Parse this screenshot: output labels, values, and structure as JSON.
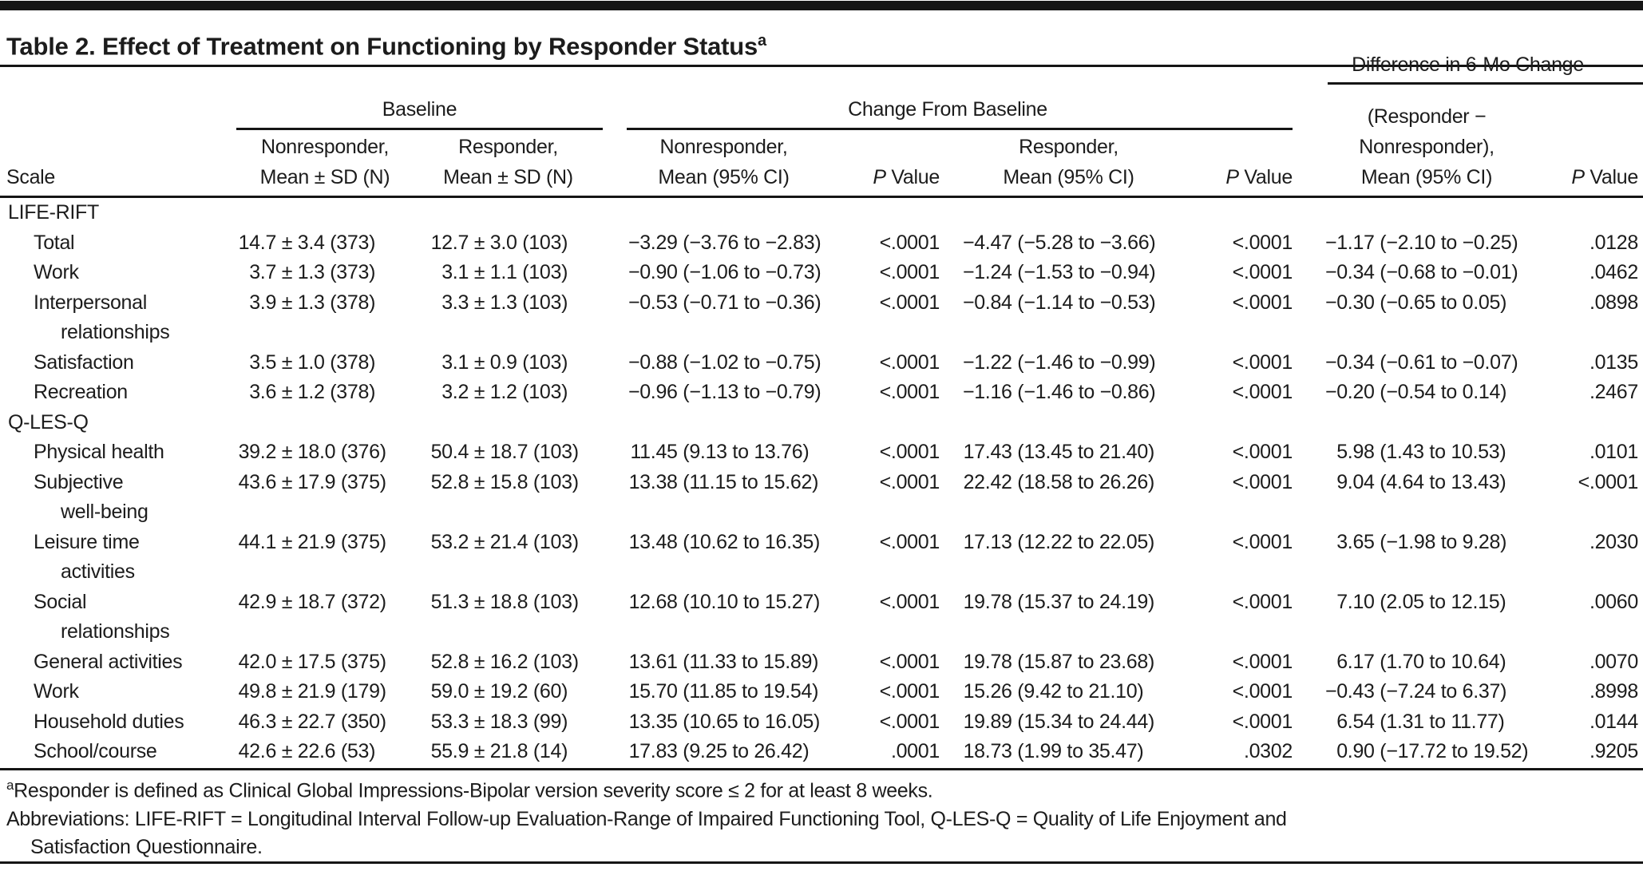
{
  "title": "Table 2. Effect of Treatment on Functioning by Responder Status",
  "title_superscript": "a",
  "table": {
    "header": {
      "scale_label": "Scale",
      "group_baseline": "Baseline",
      "group_change": "Change From Baseline",
      "group_difference": "Difference in 6-Mo Change",
      "col_baseline_nonresponder": [
        "Nonresponder,",
        "Mean ± SD (N)"
      ],
      "col_baseline_responder": [
        "Responder,",
        "Mean ± SD (N)"
      ],
      "col_change_nonresponder": [
        "Nonresponder,",
        "Mean (95% CI)"
      ],
      "col_change_responder": [
        "Responder,",
        "Mean (95% CI)"
      ],
      "col_difference": [
        "(Responder −",
        "Nonresponder),",
        "Mean (95% CI)"
      ],
      "p_label_italic": "P",
      "p_label_rest": " Value"
    },
    "rows": [
      {
        "label": "LIFE-RIFT",
        "indent": 0
      },
      {
        "label": "Total",
        "indent": 1,
        "cells": [
          "14.7 ± 3.4 (373)",
          "12.7 ± 3.0 (103)",
          "−3.29 (−3.76 to −2.83)",
          "<.0001",
          "−4.47 (−5.28 to −3.66)",
          "<.0001",
          "−1.17 (−2.10 to −0.25)",
          ".0128"
        ]
      },
      {
        "label": "Work",
        "indent": 1,
        "cells": [
          "3.7 ± 1.3 (373)",
          "3.1 ± 1.1 (103)",
          "−0.90 (−1.06 to −0.73)",
          "<.0001",
          "−1.24 (−1.53 to −0.94)",
          "<.0001",
          "−0.34 (−0.68 to −0.01)",
          ".0462"
        ]
      },
      {
        "label": "Interpersonal",
        "label2": "relationships",
        "indent": 1,
        "cells": [
          "3.9 ± 1.3 (378)",
          "3.3 ± 1.3 (103)",
          "−0.53 (−0.71 to −0.36)",
          "<.0001",
          "−0.84 (−1.14 to −0.53)",
          "<.0001",
          "−0.30 (−0.65 to 0.05)",
          ".0898"
        ]
      },
      {
        "label": "Satisfaction",
        "indent": 1,
        "cells": [
          "3.5 ± 1.0 (378)",
          "3.1 ± 0.9 (103)",
          "−0.88 (−1.02 to −0.75)",
          "<.0001",
          "−1.22 (−1.46 to −0.99)",
          "<.0001",
          "−0.34 (−0.61 to −0.07)",
          ".0135"
        ]
      },
      {
        "label": "Recreation",
        "indent": 1,
        "cells": [
          "3.6 ± 1.2 (378)",
          "3.2 ± 1.2 (103)",
          "−0.96 (−1.13 to −0.79)",
          "<.0001",
          "−1.16 (−1.46 to −0.86)",
          "<.0001",
          "−0.20 (−0.54 to 0.14)",
          ".2467"
        ]
      },
      {
        "label": "Q-LES-Q",
        "indent": 0
      },
      {
        "label": "Physical health",
        "indent": 1,
        "cells": [
          "39.2 ± 18.0 (376)",
          "50.4 ± 18.7 (103)",
          "11.45 (9.13 to 13.76)",
          "<.0001",
          "17.43 (13.45 to 21.40)",
          "<.0001",
          "5.98 (1.43 to 10.53)",
          ".0101"
        ]
      },
      {
        "label": "Subjective",
        "label2": "well-being",
        "indent": 1,
        "cells": [
          "43.6 ± 17.9 (375)",
          "52.8 ± 15.8 (103)",
          "13.38 (11.15 to 15.62)",
          "<.0001",
          "22.42 (18.58 to 26.26)",
          "<.0001",
          "9.04 (4.64 to 13.43)",
          "<.0001"
        ]
      },
      {
        "label": "Leisure time",
        "label2": "activities",
        "indent": 1,
        "cells": [
          "44.1 ± 21.9 (375)",
          "53.2 ± 21.4 (103)",
          "13.48 (10.62 to 16.35)",
          "<.0001",
          "17.13 (12.22 to 22.05)",
          "<.0001",
          "3.65 (−1.98 to 9.28)",
          ".2030"
        ]
      },
      {
        "label": "Social",
        "label2": "relationships",
        "indent": 1,
        "cells": [
          "42.9 ± 18.7 (372)",
          "51.3 ± 18.8 (103)",
          "12.68 (10.10 to 15.27)",
          "<.0001",
          "19.78 (15.37 to 24.19)",
          "<.0001",
          "7.10 (2.05 to 12.15)",
          ".0060"
        ]
      },
      {
        "label": "General activities",
        "indent": 1,
        "cells": [
          "42.0 ± 17.5 (375)",
          "52.8 ± 16.2 (103)",
          "13.61 (11.33 to 15.89)",
          "<.0001",
          "19.78 (15.87 to 23.68)",
          "<.0001",
          "6.17 (1.70 to 10.64)",
          ".0070"
        ]
      },
      {
        "label": "Work",
        "indent": 1,
        "cells": [
          "49.8 ± 21.9 (179)",
          "59.0 ± 19.2 (60)",
          "15.70 (11.85 to 19.54)",
          "<.0001",
          "15.26 (9.42 to 21.10)",
          "<.0001",
          "−0.43 (−7.24 to 6.37)",
          ".8998"
        ]
      },
      {
        "label": "Household duties",
        "indent": 1,
        "cells": [
          "46.3 ± 22.7 (350)",
          "53.3 ± 18.3 (99)",
          "13.35 (10.65 to 16.05)",
          "<.0001",
          "19.89 (15.34 to 24.44)",
          "<.0001",
          "6.54 (1.31 to 11.77)",
          ".0144"
        ]
      },
      {
        "label": "School/course",
        "indent": 1,
        "cells": [
          "42.6 ± 22.6 (53)",
          "55.9 ± 21.8 (14)",
          "17.83 (9.25 to 26.42)",
          ".0001",
          "18.73 (1.99 to 35.47)",
          ".0302",
          "0.90 (−17.72 to 19.52)",
          ".9205"
        ]
      }
    ]
  },
  "footnotes": {
    "marker": "a",
    "responder_definition": "Responder is defined as Clinical Global Impressions-Bipolar version severity score ≤ 2 for at least 8 weeks.",
    "abbreviations_line1": "Abbreviations: LIFE-RIFT = Longitudinal Interval Follow-up Evaluation-Range of Impaired Functioning Tool, Q-LES-Q = Quality of Life Enjoyment and",
    "abbreviations_line2": "Satisfaction Questionnaire."
  },
  "colors": {
    "text": "#1c1c1c",
    "rule": "#151515",
    "background": "#ffffff"
  }
}
